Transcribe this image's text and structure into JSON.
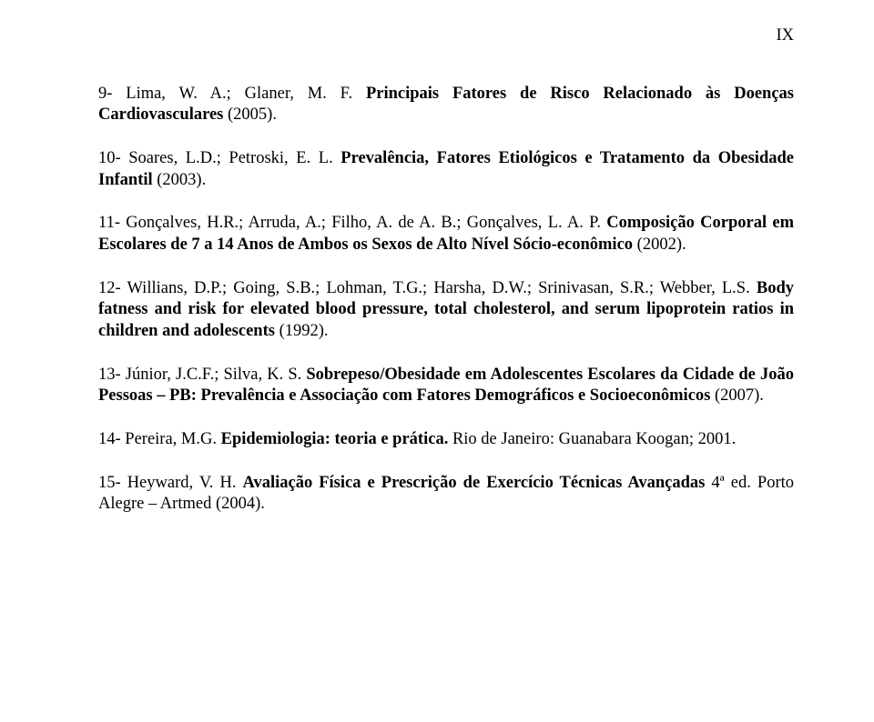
{
  "page_number_label": "IX",
  "entries": [
    {
      "parts": [
        {
          "text": "9- Lima, W. A.; Glaner, M. F. ",
          "bold": false
        },
        {
          "text": "Principais Fatores de Risco Relacionado às Doenças Cardiovasculares",
          "bold": true
        },
        {
          "text": " (2005).",
          "bold": false
        }
      ]
    },
    {
      "parts": [
        {
          "text": "10- Soares, L.D.; Petroski, E. L. ",
          "bold": false
        },
        {
          "text": "Prevalência, Fatores Etiológicos e Tratamento da Obesidade Infantil",
          "bold": true
        },
        {
          "text": " (2003).",
          "bold": false
        }
      ]
    },
    {
      "parts": [
        {
          "text": "11- Gonçalves, H.R.; Arruda, A.; Filho, A. de A. B.; Gonçalves, L. A. P. ",
          "bold": false
        },
        {
          "text": "Composição Corporal em Escolares de 7 a 14 Anos de Ambos os Sexos de Alto Nível Sócio-econômico",
          "bold": true
        },
        {
          "text": " (2002).",
          "bold": false
        }
      ]
    },
    {
      "parts": [
        {
          "text": "12- Willians, D.P.; Going, S.B.; Lohman, T.G.; Harsha, D.W.; Srinivasan, S.R.; Webber, L.S. ",
          "bold": false
        },
        {
          "text": "Body fatness and risk for elevated blood pressure, total cholesterol, and serum lipoprotein ratios in children and adolescents",
          "bold": true
        },
        {
          "text": " (1992).",
          "bold": false
        }
      ]
    },
    {
      "parts": [
        {
          "text": "13- Júnior, J.C.F.; Silva, K. S. ",
          "bold": false
        },
        {
          "text": "Sobrepeso/Obesidade em Adolescentes Escolares da Cidade de João Pessoas – PB: Prevalência e Associação com Fatores Demográficos e Socioeconômicos",
          "bold": true
        },
        {
          "text": " (2007).",
          "bold": false
        }
      ]
    },
    {
      "parts": [
        {
          "text": "14- Pereira, M.G. ",
          "bold": false
        },
        {
          "text": "Epidemiologia: teoria e prática.",
          "bold": true
        },
        {
          "text": " Rio de Janeiro: Guanabara Koogan; 2001.",
          "bold": false
        }
      ]
    },
    {
      "parts": [
        {
          "text": "15- Heyward, V. H. ",
          "bold": false
        },
        {
          "text": "Avaliação Física e Prescrição de Exercício Técnicas Avançadas",
          "bold": true
        },
        {
          "text": " 4ª ed. Porto Alegre – Artmed (2004).",
          "bold": false
        }
      ]
    }
  ]
}
